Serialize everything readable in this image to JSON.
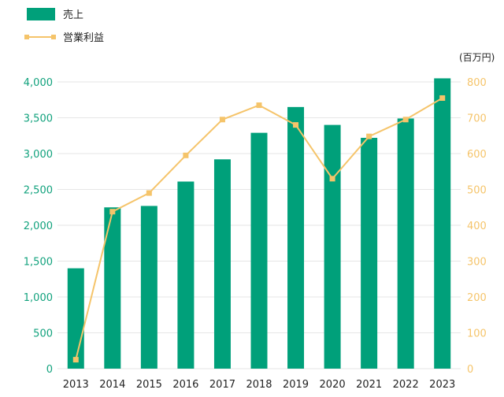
{
  "chart_data": {
    "type": "bar",
    "categories": [
      "2013",
      "2014",
      "2015",
      "2016",
      "2017",
      "2018",
      "2019",
      "2020",
      "2021",
      "2022",
      "2023"
    ],
    "series": [
      {
        "name": "売上",
        "type": "bar",
        "axis": "left",
        "values": [
          1400,
          2250,
          2270,
          2610,
          2920,
          3290,
          3650,
          3400,
          3220,
          3490,
          4050
        ]
      },
      {
        "name": "営業利益",
        "type": "line",
        "axis": "right",
        "values": [
          25,
          438,
          490,
          595,
          695,
          735,
          680,
          530,
          648,
          695,
          755
        ]
      }
    ],
    "y_left": {
      "min": 0,
      "max": 4000,
      "step": 500,
      "ticks": [
        "0",
        "500",
        "1,000",
        "1,500",
        "2,000",
        "2,500",
        "3,000",
        "3,500",
        "4,000"
      ]
    },
    "y_right": {
      "min": 0,
      "max": 800,
      "step": 100,
      "ticks": [
        "0",
        "100",
        "200",
        "300",
        "400",
        "500",
        "600",
        "700",
        "800"
      ]
    },
    "unit_label": "(百万円)",
    "grid": true,
    "legend_position": "top-left",
    "colors": {
      "bar": "#00a07a",
      "line": "#f5c46a",
      "left_axis_text": "#12a27d",
      "right_axis_text": "#f5c46a"
    }
  }
}
